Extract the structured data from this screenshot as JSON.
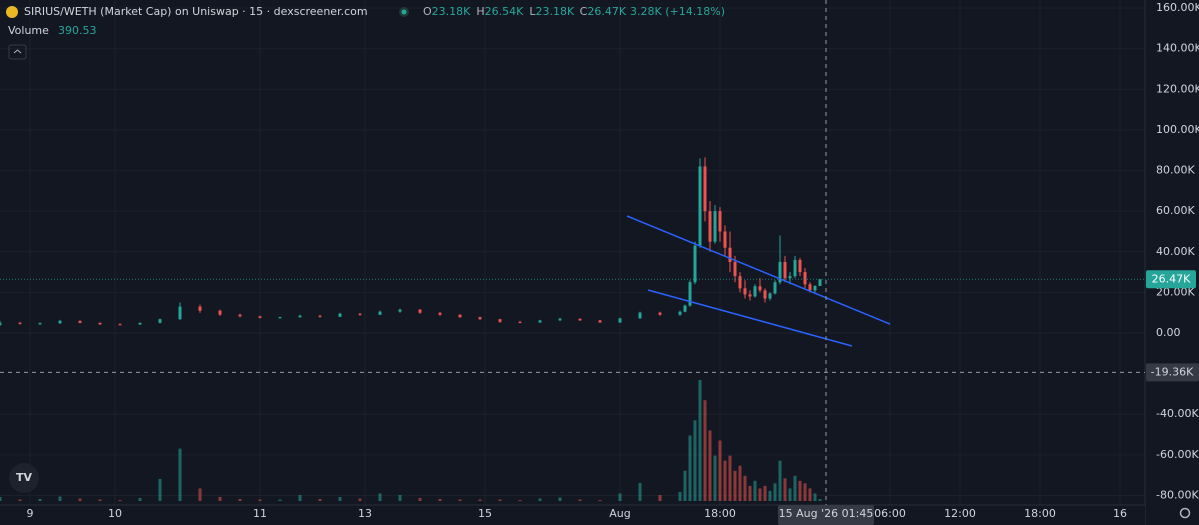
{
  "header": {
    "title": "SIRIUS/WETH (Market Cap) on Uniswap · 15 · dexscreener.com",
    "ohlc": [
      {
        "key": "O",
        "value": "23.18K"
      },
      {
        "key": "H",
        "value": "26.54K"
      },
      {
        "key": "L",
        "value": "23.18K"
      },
      {
        "key": "C",
        "value": "26.47K"
      }
    ],
    "change": "3.28K (+14.18%)",
    "volume_label": "Volume",
    "volume_value": "390.53"
  },
  "chart_data": {
    "type": "candlestick",
    "up_color": "#26a69a",
    "down_color": "#ef5350",
    "grid": true,
    "xlim": [
      0,
      229
    ],
    "xticks": [
      {
        "value": 6,
        "label": "9"
      },
      {
        "value": 23,
        "label": "10"
      },
      {
        "value": 52,
        "label": "11"
      },
      {
        "value": 73,
        "label": "13"
      },
      {
        "value": 97,
        "label": "15"
      },
      {
        "value": 124,
        "label": "Aug"
      },
      {
        "value": 144,
        "label": "18:00"
      },
      {
        "value": 178,
        "label": "06:00"
      },
      {
        "value": 192,
        "label": "12:00"
      },
      {
        "value": 208,
        "label": "18:00"
      },
      {
        "value": 224,
        "label": "16"
      }
    ],
    "ylim": [
      -84700,
      164000
    ],
    "yticks": [
      {
        "value": 160000,
        "label": "160.00K"
      },
      {
        "value": 140000,
        "label": "140.00K"
      },
      {
        "value": 120000,
        "label": "120.00K"
      },
      {
        "value": 100000,
        "label": "100.00K"
      },
      {
        "value": 80000,
        "label": "80.00K"
      },
      {
        "value": 60000,
        "label": "60.00K"
      },
      {
        "value": 40000,
        "label": "40.00K"
      },
      {
        "value": 20000,
        "label": "20.00K"
      },
      {
        "value": 0,
        "label": "0.00"
      },
      {
        "value": -40000,
        "label": "-40.00K"
      },
      {
        "value": -60000,
        "label": "-60.00K"
      },
      {
        "value": -80000,
        "label": "-80.00K"
      }
    ],
    "y2lim": [
      0,
      25000
    ],
    "x": [
      0,
      4,
      8,
      12,
      16,
      20,
      24,
      28,
      32,
      36,
      40,
      44,
      48,
      52,
      56,
      60,
      64,
      68,
      72,
      76,
      80,
      84,
      88,
      92,
      96,
      100,
      104,
      108,
      112,
      116,
      120,
      124,
      128,
      132,
      136,
      137,
      138,
      139,
      140,
      141,
      142,
      143,
      144,
      145,
      146,
      147,
      148,
      149,
      150,
      151,
      152,
      153,
      154,
      155,
      156,
      157,
      158,
      159,
      160,
      161,
      162,
      163,
      164
    ],
    "open": [
      4000,
      5000,
      4500,
      4800,
      6000,
      5000,
      4300,
      4200,
      5000,
      6800,
      13000,
      11000,
      9000,
      8200,
      7500,
      7800,
      8500,
      8000,
      9500,
      9000,
      10500,
      11500,
      10000,
      9000,
      7800,
      6800,
      5500,
      5200,
      6200,
      7000,
      6200,
      5200,
      7200,
      10000,
      9000,
      10500,
      13500,
      25000,
      43000,
      82000,
      60000,
      45000,
      60000,
      50000,
      42000,
      35000,
      28000,
      22000,
      19000,
      18000,
      23000,
      21000,
      17000,
      19500,
      25000,
      35000,
      27000,
      28000,
      36000,
      30000,
      24000,
      21000,
      23180
    ],
    "high": [
      6000,
      5500,
      5200,
      6500,
      6200,
      5200,
      4800,
      5200,
      7000,
      15000,
      14000,
      11500,
      9500,
      8500,
      8000,
      9000,
      8800,
      10000,
      9800,
      11000,
      12000,
      11800,
      10200,
      9200,
      8000,
      7000,
      6000,
      6500,
      7500,
      7200,
      6400,
      7500,
      10500,
      10500,
      11000,
      14000,
      26000,
      45000,
      86000,
      86500,
      65000,
      63000,
      62000,
      53000,
      50000,
      38000,
      30000,
      26000,
      21000,
      24000,
      27000,
      22000,
      20000,
      26000,
      48000,
      38000,
      30000,
      38000,
      37000,
      32000,
      25000,
      23500,
      26540
    ],
    "low": [
      3500,
      4200,
      4000,
      4500,
      4800,
      4000,
      3800,
      4000,
      4800,
      6500,
      10000,
      8500,
      7800,
      7200,
      7000,
      7500,
      7600,
      7800,
      8500,
      8800,
      10000,
      9500,
      8500,
      7500,
      6500,
      5000,
      4800,
      5000,
      6000,
      6000,
      5000,
      5000,
      7000,
      8500,
      8500,
      10200,
      13000,
      24000,
      42000,
      55000,
      40000,
      44000,
      45000,
      38000,
      30000,
      25000,
      20000,
      17000,
      16000,
      17500,
      20000,
      15000,
      16000,
      19000,
      24000,
      25000,
      24000,
      27000,
      28000,
      22000,
      20000,
      20000,
      23180
    ],
    "close": [
      5000,
      4500,
      4800,
      6000,
      5000,
      4300,
      4200,
      5000,
      6800,
      13000,
      11000,
      9000,
      8200,
      7500,
      7800,
      8500,
      8000,
      9500,
      9000,
      10500,
      11500,
      10000,
      9000,
      7800,
      6800,
      5500,
      5200,
      6200,
      7000,
      6200,
      5200,
      7200,
      10000,
      9000,
      10500,
      13500,
      25000,
      43000,
      82000,
      60000,
      45000,
      60000,
      50000,
      42000,
      35000,
      28000,
      22000,
      19000,
      18000,
      23000,
      21000,
      17000,
      19500,
      25000,
      35000,
      27000,
      28000,
      36000,
      30000,
      24000,
      21000,
      23180,
      26470
    ],
    "volume": [
      800,
      300,
      400,
      900,
      500,
      300,
      200,
      600,
      4400,
      10400,
      2500,
      800,
      400,
      300,
      300,
      1200,
      400,
      800,
      500,
      1500,
      1200,
      600,
      400,
      300,
      300,
      300,
      200,
      500,
      700,
      300,
      200,
      1500,
      3600,
      1200,
      1800,
      6000,
      13000,
      16000,
      24000,
      20000,
      14000,
      9000,
      12000,
      8000,
      9000,
      6000,
      7000,
      5000,
      3000,
      4000,
      2500,
      3000,
      2000,
      3500,
      8000,
      4500,
      2500,
      5000,
      4000,
      3500,
      2500,
      1500,
      390.53
    ],
    "last_price": {
      "value": 26470,
      "label": "26.47K"
    },
    "crosshair": {
      "y": {
        "value": -19360,
        "label": "-19.36K"
      },
      "x_label": "15 Aug '26  01:45"
    }
  }
}
